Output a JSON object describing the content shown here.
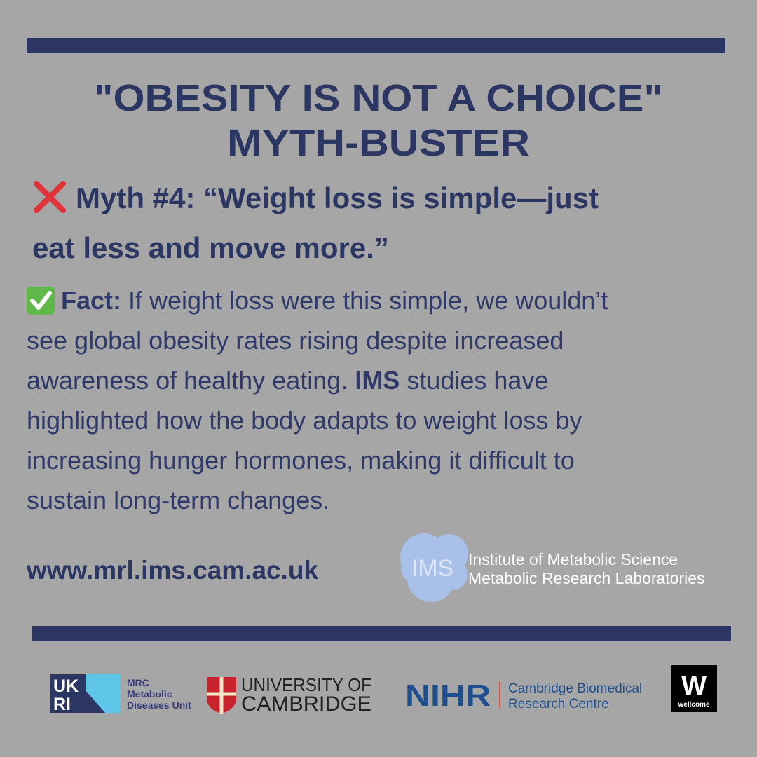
{
  "header": {
    "title_lines": [
      "\"OBESITY IS NOT A CHOICE\"",
      "MYTH-BUSTER"
    ]
  },
  "myth": {
    "lines": [
      "Myth #4: “Weight loss is simple—just",
      "eat less and move more.”"
    ]
  },
  "fact": {
    "lines": [
      [
        {
          "text": "Fact:",
          "bold": true
        },
        {
          "text": " If weight loss were this simple, we wouldn’t",
          "bold": false
        }
      ],
      [
        {
          "text": "see global obesity rates rising despite increased",
          "bold": false
        }
      ],
      [
        {
          "text": "awareness of healthy eating. ",
          "bold": false
        },
        {
          "text": "IMS",
          "bold": true
        },
        {
          "text": " studies have",
          "bold": false
        }
      ],
      [
        {
          "text": "highlighted how the body adapts to weight loss by",
          "bold": false
        }
      ],
      [
        {
          "text": "increasing hunger hormones, making it difficult to",
          "bold": false
        }
      ],
      [
        {
          "text": "sustain long-term changes.",
          "bold": false
        }
      ]
    ]
  },
  "website": "www.mrl.ims.cam.ac.uk",
  "ims_logo": {
    "mark": "IMS",
    "lines": [
      "Institute of Metabolic Science",
      "Metabolic Research Laboratories"
    ]
  },
  "footer": {
    "ukri": {
      "mark_lines": [
        "UK",
        "RI"
      ],
      "lines": [
        "MRC",
        "Metabolic",
        "Diseases Unit"
      ]
    },
    "cambridge": {
      "lines": [
        "UNIVERSITY OF",
        "CAMBRIDGE"
      ]
    },
    "nihr": {
      "mark": "NIHR",
      "lines": [
        "Cambridge Biomedical",
        "Research Centre"
      ]
    },
    "wellcome": {
      "mark": "W",
      "name": "wellcome"
    }
  }
}
